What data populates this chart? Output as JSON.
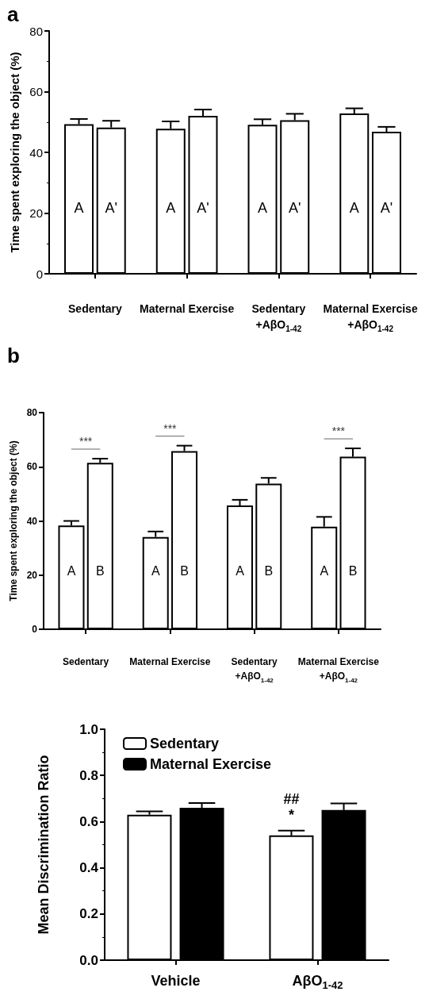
{
  "chart_data": [
    {
      "type": "bar",
      "title": "a",
      "ylabel": "Time spent exploring the object (%)",
      "categories": [
        "Sedentary",
        "Maternal Exercise",
        "Sedentary\n+AβO$_{1-42}$",
        "Maternal Exercise\n+AβO$_{1-42}$"
      ],
      "series": [
        {
          "name": "A",
          "color": "#ffffff",
          "values": [
            49.3,
            47.8,
            49.1,
            52.8
          ],
          "errors": [
            1.7,
            2.4,
            1.8,
            1.7
          ]
        },
        {
          "name": "A'",
          "color": "#ffffff",
          "values": [
            48.2,
            52.0,
            50.6,
            46.8
          ],
          "errors": [
            2.2,
            2.1,
            2.1,
            1.6
          ]
        }
      ],
      "ylim": [
        0,
        80
      ],
      "yticks": [
        0,
        20,
        40,
        60,
        80
      ],
      "grid": false,
      "legend": false
    },
    {
      "type": "bar",
      "title": "b",
      "ylabel": "Time spent exploring the object (%)",
      "categories": [
        "Sedentary",
        "Maternal Exercise",
        "Sedentary\n+AβO$_{1-42}$",
        "Maternal Exercise\n+AβO$_{1-42}$"
      ],
      "series": [
        {
          "name": "A",
          "color": "#ffffff",
          "values": [
            38.3,
            34.1,
            45.7,
            37.9
          ],
          "errors": [
            1.7,
            2.0,
            2.1,
            3.6
          ]
        },
        {
          "name": "B",
          "color": "#ffffff",
          "values": [
            61.5,
            65.8,
            53.8,
            63.7
          ],
          "errors": [
            1.5,
            2.0,
            2.1,
            3.1
          ]
        }
      ],
      "ylim": [
        0,
        80
      ],
      "yticks": [
        0,
        20,
        40,
        60,
        80
      ],
      "grid": false,
      "legend": false,
      "annotations": [
        "***",
        "***",
        "***"
      ]
    },
    {
      "type": "bar",
      "ylabel": "Mean Discrimination Ratio",
      "categories": [
        "Vehicle",
        "AβO$_{1-42}$"
      ],
      "series": [
        {
          "name": "Sedentary",
          "color": "#ffffff",
          "values": [
            0.63,
            0.54
          ],
          "errors": [
            0.014,
            0.021
          ]
        },
        {
          "name": "Maternal Exercise",
          "color": "#000000",
          "values": [
            0.66,
            0.65
          ],
          "errors": [
            0.02,
            0.029
          ]
        }
      ],
      "ylim": [
        0,
        1
      ],
      "yticks": [
        {
          "value": 0,
          "label": "0.0"
        },
        0.2,
        0.4,
        0.6,
        0.8,
        {
          "value": 1,
          "label": "1.0"
        }
      ],
      "grid": false,
      "legend": "top left",
      "annotations": [
        "##",
        "*"
      ]
    }
  ]
}
